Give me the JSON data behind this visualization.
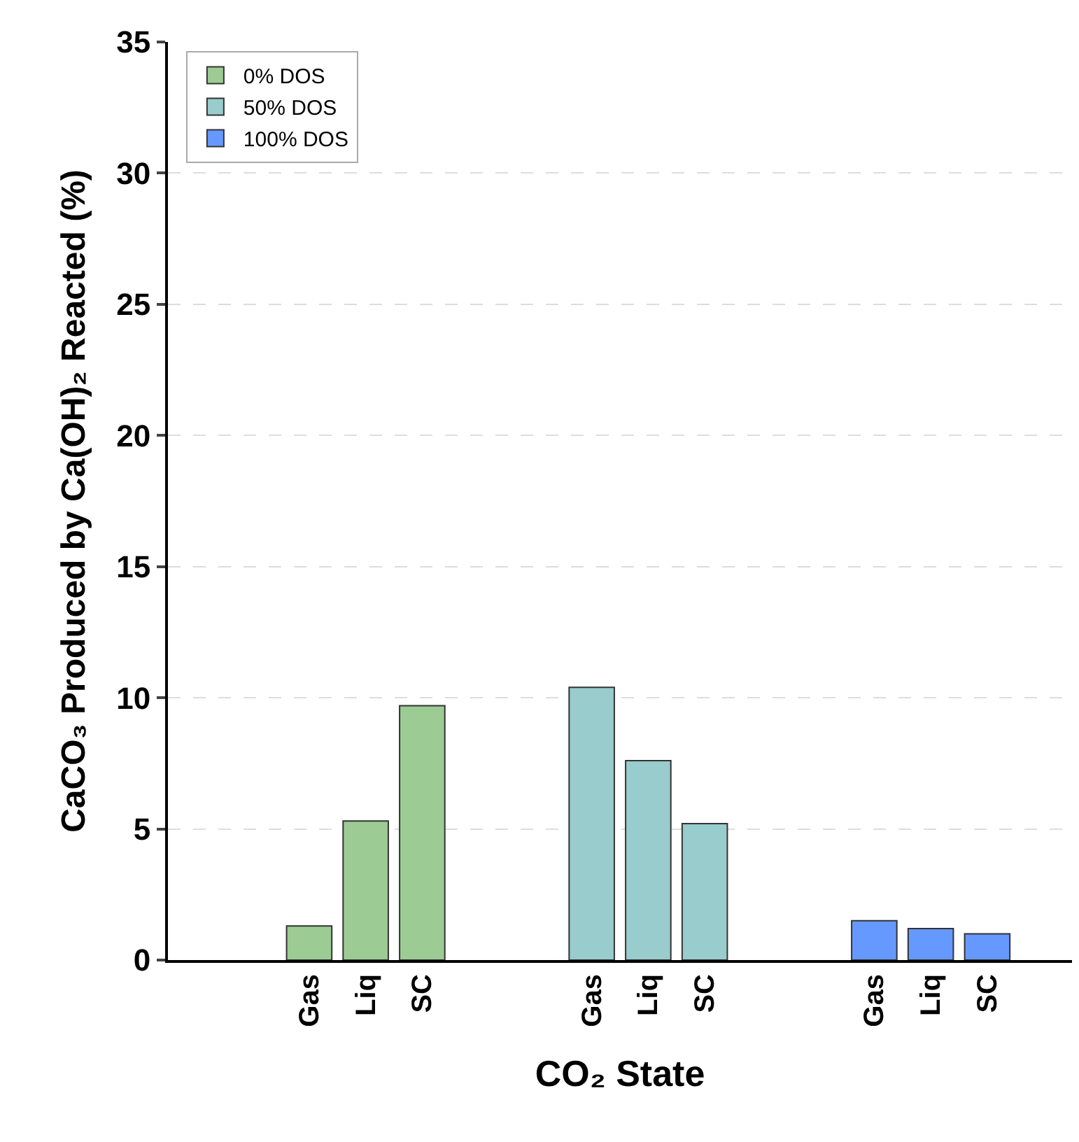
{
  "chart_data": {
    "type": "bar",
    "xlabel": "CO₂ State",
    "ylabel": "CaCO₃ Produced by Ca(OH)₂ Reacted (%)",
    "categories": [
      null,
      null,
      "Gas",
      "Liq",
      "SC",
      null,
      null,
      "Gas",
      "Liq",
      "SC",
      null,
      null,
      "Gas",
      "Liq",
      "SC",
      null
    ],
    "series": [
      {
        "name": "0% DOS",
        "color": "#9ccc94",
        "values": [
          null,
          null,
          1.3,
          5.3,
          9.7,
          null,
          null,
          null,
          null,
          null,
          null,
          null,
          null,
          null,
          null,
          null
        ]
      },
      {
        "name": "50% DOS",
        "color": "#99cccc",
        "values": [
          null,
          null,
          null,
          null,
          null,
          null,
          null,
          10.4,
          7.6,
          5.2,
          null,
          null,
          null,
          null,
          null,
          null
        ]
      },
      {
        "name": "100% DOS",
        "color": "#6699ff",
        "values": [
          null,
          null,
          null,
          null,
          null,
          null,
          null,
          null,
          null,
          null,
          null,
          null,
          1.5,
          1.2,
          1.0,
          null
        ]
      }
    ],
    "ylim": [
      0,
      35
    ],
    "yticks": [
      0,
      5,
      10,
      15,
      20,
      25,
      30,
      35
    ],
    "grid": "y",
    "legend": "top left"
  }
}
